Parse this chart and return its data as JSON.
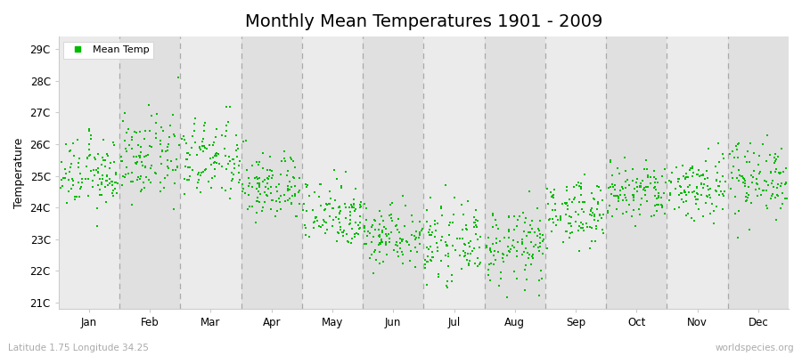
{
  "title": "Monthly Mean Temperatures 1901 - 2009",
  "ylabel": "Temperature",
  "bottom_left": "Latitude 1.75 Longitude 34.25",
  "bottom_right": "worldspecies.org",
  "legend_label": "Mean Temp",
  "y_tick_labels": [
    "21C",
    "22C",
    "23C",
    "24C",
    "25C",
    "26C",
    "27C",
    "28C",
    "29C"
  ],
  "y_tick_values": [
    21,
    22,
    23,
    24,
    25,
    26,
    27,
    28,
    29
  ],
  "ylim": [
    20.8,
    29.4
  ],
  "months": [
    "Jan",
    "Feb",
    "Mar",
    "Apr",
    "May",
    "Jun",
    "Jul",
    "Aug",
    "Sep",
    "Oct",
    "Nov",
    "Dec"
  ],
  "month_means": [
    25.05,
    25.55,
    25.5,
    24.65,
    23.85,
    23.15,
    22.85,
    22.75,
    23.85,
    24.45,
    24.65,
    24.95
  ],
  "month_stds": [
    0.55,
    0.65,
    0.65,
    0.55,
    0.55,
    0.5,
    0.55,
    0.6,
    0.5,
    0.5,
    0.55,
    0.6
  ],
  "n_years": 109,
  "dot_color": "#00bb00",
  "dot_size": 2.5,
  "bg_colors": [
    "#ebebeb",
    "#e0e0e0"
  ],
  "dashed_line_color": "#aaaaaa",
  "seed": 12345,
  "title_fontsize": 14,
  "axis_label_fontsize": 9,
  "tick_label_fontsize": 8.5,
  "legend_fontsize": 8
}
